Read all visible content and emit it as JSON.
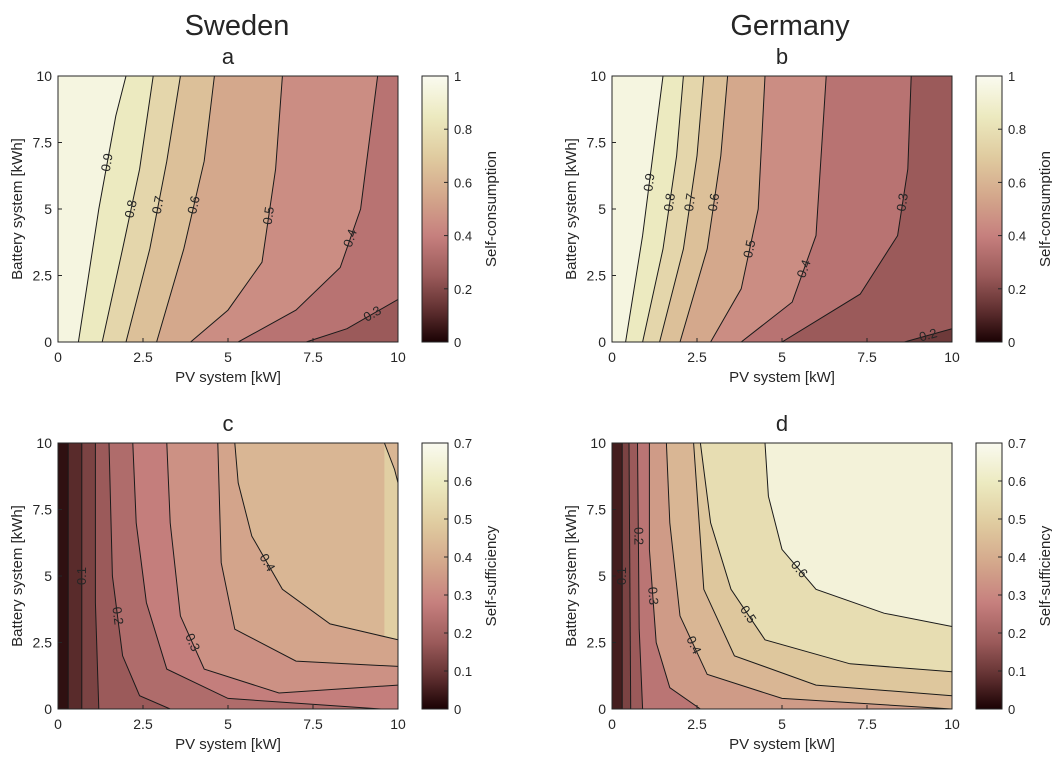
{
  "column_titles": [
    "Sweden",
    "Germany"
  ],
  "chart_data": [
    {
      "type": "contour",
      "panel_label": "a",
      "country": "Sweden",
      "xlabel": "PV system [kW]",
      "ylabel": "Battery system [kWh]",
      "xlim": [
        0,
        10
      ],
      "ylim": [
        0,
        10
      ],
      "x_ticks": [
        "0",
        "2.5",
        "5",
        "7.5",
        "10"
      ],
      "y_ticks": [
        "0",
        "2.5",
        "5",
        "7.5",
        "10"
      ],
      "colorbar": {
        "label": "Self-consumption",
        "range": [
          0,
          1
        ],
        "ticks": [
          "0",
          "0.2",
          "0.4",
          "0.6",
          "0.8",
          "1"
        ]
      },
      "contour_levels": [
        {
          "level": 0.9,
          "label": "0.9",
          "curve": [
            [
              0.6,
              0
            ],
            [
              1.2,
              5
            ],
            [
              1.7,
              8.5
            ],
            [
              2.0,
              10
            ]
          ]
        },
        {
          "level": 0.8,
          "label": "0.8",
          "curve": [
            [
              1.3,
              0
            ],
            [
              1.9,
              3.5
            ],
            [
              2.4,
              6.5
            ],
            [
              2.8,
              10
            ]
          ]
        },
        {
          "level": 0.7,
          "label": "0.7",
          "curve": [
            [
              2.0,
              0
            ],
            [
              2.7,
              3.5
            ],
            [
              3.2,
              6.8
            ],
            [
              3.6,
              10
            ]
          ]
        },
        {
          "level": 0.6,
          "label": "0.6",
          "curve": [
            [
              2.9,
              0
            ],
            [
              3.7,
              3.5
            ],
            [
              4.3,
              6.8
            ],
            [
              4.6,
              10
            ]
          ]
        },
        {
          "level": 0.5,
          "label": "0.5",
          "curve": [
            [
              3.9,
              0
            ],
            [
              5.0,
              1.2
            ],
            [
              6.0,
              3.0
            ],
            [
              6.4,
              6.5
            ],
            [
              6.6,
              10
            ]
          ]
        },
        {
          "level": 0.4,
          "label": "0.4",
          "curve": [
            [
              5.3,
              0
            ],
            [
              7.0,
              1.2
            ],
            [
              8.3,
              2.8
            ],
            [
              8.9,
              5.0
            ],
            [
              9.2,
              8.0
            ],
            [
              9.4,
              10
            ]
          ]
        },
        {
          "level": 0.3,
          "label": "0.3",
          "curve": [
            [
              7.3,
              0
            ],
            [
              8.5,
              0.5
            ],
            [
              10,
              1.6
            ]
          ]
        }
      ]
    },
    {
      "type": "contour",
      "panel_label": "b",
      "country": "Germany",
      "xlabel": "PV system [kW]",
      "ylabel": "Battery system [kWh]",
      "xlim": [
        0,
        10
      ],
      "ylim": [
        0,
        10
      ],
      "x_ticks": [
        "0",
        "2.5",
        "5",
        "7.5",
        "10"
      ],
      "y_ticks": [
        "0",
        "2.5",
        "5",
        "7.5",
        "10"
      ],
      "colorbar": {
        "label": "Self-consumption",
        "range": [
          0,
          1
        ],
        "ticks": [
          "0",
          "0.2",
          "0.4",
          "0.6",
          "0.8",
          "1"
        ]
      },
      "contour_levels": [
        {
          "level": 0.9,
          "label": "0.9",
          "curve": [
            [
              0.4,
              0
            ],
            [
              0.9,
              4.0
            ],
            [
              1.3,
              8.0
            ],
            [
              1.5,
              10
            ]
          ]
        },
        {
          "level": 0.8,
          "label": "0.8",
          "curve": [
            [
              0.9,
              0
            ],
            [
              1.5,
              3.5
            ],
            [
              1.9,
              7.0
            ],
            [
              2.1,
              10
            ]
          ]
        },
        {
          "level": 0.7,
          "label": "0.7",
          "curve": [
            [
              1.4,
              0
            ],
            [
              2.1,
              3.5
            ],
            [
              2.5,
              7.0
            ],
            [
              2.7,
              10
            ]
          ]
        },
        {
          "level": 0.6,
          "label": "0.6",
          "curve": [
            [
              2.0,
              0
            ],
            [
              2.8,
              3.5
            ],
            [
              3.2,
              7.0
            ],
            [
              3.4,
              10
            ]
          ]
        },
        {
          "level": 0.5,
          "label": "0.5",
          "curve": [
            [
              2.9,
              0
            ],
            [
              3.8,
              2.0
            ],
            [
              4.3,
              5.0
            ],
            [
              4.5,
              10
            ]
          ]
        },
        {
          "level": 0.4,
          "label": "0.4",
          "curve": [
            [
              3.8,
              0
            ],
            [
              5.3,
              1.5
            ],
            [
              6.0,
              4.0
            ],
            [
              6.3,
              10
            ]
          ]
        },
        {
          "level": 0.3,
          "label": "0.3",
          "curve": [
            [
              5.0,
              0
            ],
            [
              7.3,
              1.8
            ],
            [
              8.4,
              4.0
            ],
            [
              8.7,
              6.5
            ],
            [
              8.8,
              10
            ]
          ]
        },
        {
          "level": 0.2,
          "label": "0.2",
          "curve": [
            [
              8.6,
              0
            ],
            [
              10,
              0.5
            ]
          ]
        }
      ]
    },
    {
      "type": "contour",
      "panel_label": "c",
      "country": "Sweden",
      "xlabel": "PV system [kW]",
      "ylabel": "Battery system [kWh]",
      "xlim": [
        0,
        10
      ],
      "ylim": [
        0,
        10
      ],
      "x_ticks": [
        "0",
        "2.5",
        "5",
        "7.5",
        "10"
      ],
      "y_ticks": [
        "0",
        "2.5",
        "5",
        "7.5",
        "10"
      ],
      "colorbar": {
        "label": "Self-sufficiency",
        "range": [
          0,
          0.7
        ],
        "ticks": [
          "0",
          "0.1",
          "0.2",
          "0.3",
          "0.4",
          "0.5",
          "0.6",
          "0.7"
        ]
      },
      "contour_levels": [
        {
          "level": 0.05,
          "label": "",
          "curve": [
            [
              0.3,
              0
            ],
            [
              0.3,
              10
            ]
          ]
        },
        {
          "level": 0.1,
          "label": "0.1",
          "curve": [
            [
              0.7,
              0
            ],
            [
              0.7,
              10
            ]
          ]
        },
        {
          "level": 0.15,
          "label": "",
          "curve": [
            [
              1.2,
              0
            ],
            [
              1.1,
              4
            ],
            [
              1.1,
              10
            ]
          ]
        },
        {
          "level": 0.2,
          "label": "0.2",
          "curve": [
            [
              3.3,
              0
            ],
            [
              2.4,
              0.5
            ],
            [
              1.9,
              2.0
            ],
            [
              1.6,
              5.0
            ],
            [
              1.5,
              10
            ]
          ]
        },
        {
          "level": 0.25,
          "label": "",
          "curve": [
            [
              9.5,
              0
            ],
            [
              5.0,
              0.4
            ],
            [
              3.2,
              1.5
            ],
            [
              2.6,
              4.0
            ],
            [
              2.3,
              7.0
            ],
            [
              2.2,
              10
            ]
          ]
        },
        {
          "level": 0.3,
          "label": "0.3",
          "curve": [
            [
              10,
              0.9
            ],
            [
              6.5,
              0.6
            ],
            [
              4.3,
              1.5
            ],
            [
              3.6,
              3.5
            ],
            [
              3.3,
              7.0
            ],
            [
              3.2,
              10
            ]
          ]
        },
        {
          "level": 0.35,
          "label": "",
          "curve": [
            [
              10,
              1.6
            ],
            [
              7.0,
              1.8
            ],
            [
              5.2,
              3.0
            ],
            [
              4.8,
              5.5
            ],
            [
              4.7,
              10
            ]
          ]
        },
        {
          "level": 0.4,
          "label": "0.4",
          "curve": [
            [
              10,
              2.6
            ],
            [
              8.0,
              3.2
            ],
            [
              6.6,
              4.5
            ],
            [
              5.7,
              6.5
            ],
            [
              5.3,
              8.5
            ],
            [
              5.2,
              10
            ]
          ]
        },
        {
          "level": 0.45,
          "label": "",
          "curve": [
            [
              9.6,
              10
            ],
            [
              9.9,
              9.0
            ],
            [
              10,
              8.5
            ]
          ]
        }
      ]
    },
    {
      "type": "contour",
      "panel_label": "d",
      "country": "Germany",
      "xlabel": "PV system [kW]",
      "ylabel": "Battery system [kWh]",
      "xlim": [
        0,
        10
      ],
      "ylim": [
        0,
        10
      ],
      "x_ticks": [
        "0",
        "2.5",
        "5",
        "7.5",
        "10"
      ],
      "y_ticks": [
        "0",
        "2.5",
        "5",
        "7.5",
        "10"
      ],
      "colorbar": {
        "label": "Self-sufficiency",
        "range": [
          0,
          0.7
        ],
        "ticks": [
          "0",
          "0.1",
          "0.2",
          "0.3",
          "0.4",
          "0.5",
          "0.6",
          "0.7"
        ]
      },
      "contour_levels": [
        {
          "level": 0.1,
          "label": "0.1",
          "curve": [
            [
              0.3,
              0
            ],
            [
              0.3,
              10
            ]
          ]
        },
        {
          "level": 0.15,
          "label": "",
          "curve": [
            [
              0.55,
              0
            ],
            [
              0.5,
              10
            ]
          ]
        },
        {
          "level": 0.2,
          "label": "0.2",
          "curve": [
            [
              0.9,
              0
            ],
            [
              0.8,
              3
            ],
            [
              0.75,
              10
            ]
          ]
        },
        {
          "level": 0.3,
          "label": "0.3",
          "curve": [
            [
              2.6,
              0
            ],
            [
              1.7,
              0.8
            ],
            [
              1.3,
              2.5
            ],
            [
              1.1,
              6.0
            ],
            [
              1.1,
              10
            ]
          ]
        },
        {
          "level": 0.4,
          "label": "0.4",
          "curve": [
            [
              10,
              0
            ],
            [
              5.0,
              0.4
            ],
            [
              2.8,
              1.3
            ],
            [
              2.0,
              3.5
            ],
            [
              1.7,
              7.0
            ],
            [
              1.6,
              10
            ]
          ]
        },
        {
          "level": 0.45,
          "label": "",
          "curve": [
            [
              10,
              0.5
            ],
            [
              6.0,
              0.9
            ],
            [
              3.6,
              2.0
            ],
            [
              2.7,
              4.5
            ],
            [
              2.4,
              10
            ]
          ]
        },
        {
          "level": 0.5,
          "label": "0.5",
          "curve": [
            [
              10,
              1.4
            ],
            [
              7.0,
              1.7
            ],
            [
              4.5,
              2.6
            ],
            [
              3.5,
              4.5
            ],
            [
              2.9,
              7.0
            ],
            [
              2.6,
              10
            ]
          ]
        },
        {
          "level": 0.6,
          "label": "0.6",
          "curve": [
            [
              10,
              3.1
            ],
            [
              8.0,
              3.6
            ],
            [
              6.0,
              4.5
            ],
            [
              5.0,
              6.0
            ],
            [
              4.6,
              8.0
            ],
            [
              4.5,
              10
            ]
          ]
        }
      ]
    }
  ]
}
